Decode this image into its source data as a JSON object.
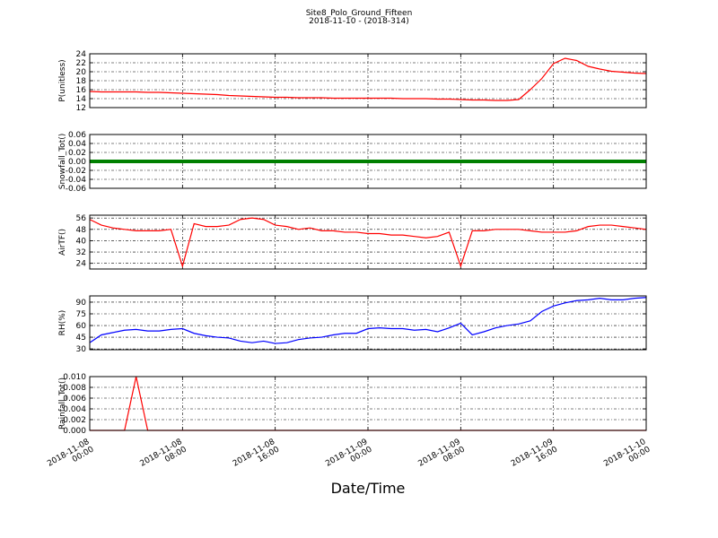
{
  "title": "Site8_Polo_Ground_Fifteen",
  "subtitle": "2018-11-10 - (2018-314)",
  "xlabel": "Date/Time",
  "xlim": [
    "2018-11-08 00:00",
    "2018-11-10 00:00"
  ],
  "xticks": [
    "2018-11-08 00:00",
    "2018-11-08 08:00",
    "2018-11-08 16:00",
    "2018-11-09 00:00",
    "2018-11-09 08:00",
    "2018-11-09 16:00",
    "2018-11-10 00:00"
  ],
  "x": [
    "2018-11-08 00:00",
    "2018-11-08 01:00",
    "2018-11-08 02:00",
    "2018-11-08 03:00",
    "2018-11-08 04:00",
    "2018-11-08 05:00",
    "2018-11-08 06:00",
    "2018-11-08 07:00",
    "2018-11-08 08:00",
    "2018-11-08 09:00",
    "2018-11-08 10:00",
    "2018-11-08 11:00",
    "2018-11-08 12:00",
    "2018-11-08 13:00",
    "2018-11-08 14:00",
    "2018-11-08 15:00",
    "2018-11-08 16:00",
    "2018-11-08 17:00",
    "2018-11-08 18:00",
    "2018-11-08 19:00",
    "2018-11-08 20:00",
    "2018-11-08 21:00",
    "2018-11-08 22:00",
    "2018-11-08 23:00",
    "2018-11-09 00:00",
    "2018-11-09 01:00",
    "2018-11-09 02:00",
    "2018-11-09 03:00",
    "2018-11-09 04:00",
    "2018-11-09 05:00",
    "2018-11-09 06:00",
    "2018-11-09 07:00",
    "2018-11-09 08:00",
    "2018-11-09 09:00",
    "2018-11-09 10:00",
    "2018-11-09 11:00",
    "2018-11-09 12:00",
    "2018-11-09 13:00",
    "2018-11-09 14:00",
    "2018-11-09 15:00",
    "2018-11-09 16:00",
    "2018-11-09 17:00",
    "2018-11-09 18:00",
    "2018-11-09 19:00",
    "2018-11-09 20:00",
    "2018-11-09 21:00",
    "2018-11-09 22:00",
    "2018-11-09 23:00",
    "2018-11-10 00:00"
  ],
  "chart_data": [
    {
      "type": "line",
      "ylabel": "P(unitless)",
      "ylim": [
        12,
        24
      ],
      "yticks": [
        12,
        14,
        16,
        18,
        20,
        22,
        24
      ],
      "grid": true,
      "series": [
        {
          "color": "#ff0000",
          "values": [
            15.6,
            15.5,
            15.5,
            15.5,
            15.5,
            15.4,
            15.4,
            15.3,
            15.2,
            15.1,
            15.0,
            14.9,
            14.7,
            14.6,
            14.5,
            14.4,
            14.3,
            14.3,
            14.2,
            14.2,
            14.2,
            14.1,
            14.1,
            14.1,
            14.1,
            14.1,
            14.1,
            14.0,
            14.0,
            14.0,
            13.9,
            13.9,
            13.8,
            13.7,
            13.7,
            13.6,
            13.6,
            13.8,
            16.0,
            18.5,
            21.8,
            23.0,
            22.5,
            21.2,
            20.6,
            20.1,
            19.9,
            19.7,
            19.6
          ]
        }
      ]
    },
    {
      "type": "line",
      "ylabel": "Snowfall_Tot()",
      "ylim": [
        -0.06,
        0.06
      ],
      "yticks": [
        -0.06,
        -0.04,
        -0.02,
        {
          "value": 0,
          "label": "0.00"
        },
        0.02,
        0.04,
        0.06
      ],
      "grid": true,
      "series": [
        {
          "color": "#008000",
          "values": [
            0,
            0,
            0,
            0,
            0,
            0,
            0,
            0,
            0,
            0,
            0,
            0,
            0,
            0,
            0,
            0,
            0,
            0,
            0,
            0,
            0,
            0,
            0,
            0,
            0,
            0,
            0,
            0,
            0,
            0,
            0,
            0,
            0,
            0,
            0,
            0,
            0,
            0,
            0,
            0,
            0,
            0,
            0,
            0,
            0,
            0,
            0,
            0,
            0
          ]
        }
      ]
    },
    {
      "type": "line",
      "ylabel": "AirTF()",
      "ylim": [
        20,
        58
      ],
      "yticks": [
        24,
        32,
        40,
        48,
        56
      ],
      "grid": true,
      "series": [
        {
          "color": "#ff0000",
          "values": [
            55,
            51,
            49,
            48,
            47,
            47,
            47,
            48,
            22,
            52,
            50,
            50,
            51,
            55,
            56,
            55,
            51,
            50,
            48,
            49,
            47,
            47,
            46,
            46,
            45,
            45,
            44,
            44,
            43,
            42,
            43,
            46,
            22,
            47,
            47,
            48,
            48,
            48,
            47,
            46,
            46,
            46,
            47,
            50,
            51,
            51,
            50,
            49,
            48
          ]
        }
      ]
    },
    {
      "type": "line",
      "ylabel": "RH(%)",
      "ylim": [
        29,
        98
      ],
      "yticks": [
        30,
        45,
        60,
        75,
        90
      ],
      "grid": true,
      "series": [
        {
          "color": "#0000ff",
          "values": [
            38,
            48,
            51,
            54,
            55,
            53,
            53,
            55,
            56,
            50,
            47,
            45,
            44,
            40,
            38,
            40,
            37,
            38,
            42,
            44,
            45,
            48,
            50,
            50,
            56,
            57,
            56,
            56,
            54,
            55,
            52,
            57,
            63,
            48,
            52,
            57,
            60,
            62,
            66,
            78,
            85,
            89,
            92,
            93,
            95,
            93,
            93,
            95,
            96
          ]
        }
      ]
    },
    {
      "type": "line",
      "ylabel": "Rainfall_Tot()",
      "ylim": [
        0,
        0.01
      ],
      "yticks": [
        {
          "value": 0,
          "label": "0.000"
        },
        0.002,
        0.004,
        0.006,
        0.008,
        {
          "value": 0.01,
          "label": "0.010"
        }
      ],
      "grid": true,
      "series": [
        {
          "color": "#ff0000",
          "values": [
            0,
            0,
            0,
            0,
            0.01,
            0,
            0,
            0,
            0,
            0,
            0,
            0,
            0,
            0,
            0,
            0,
            0,
            0,
            0,
            0,
            0,
            0,
            0,
            0,
            0,
            0,
            0,
            0,
            0,
            0,
            0,
            0,
            0,
            0,
            0,
            0,
            0,
            0,
            0,
            0,
            0,
            0,
            0,
            0,
            0,
            0,
            0,
            0,
            0
          ]
        }
      ]
    }
  ]
}
